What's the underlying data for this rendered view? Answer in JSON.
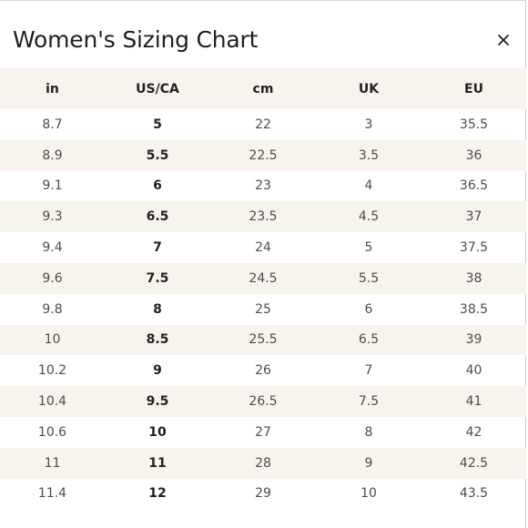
{
  "dialog": {
    "title": "Women's Sizing Chart",
    "close_icon": "close-icon"
  },
  "table": {
    "columns": [
      "in",
      "US/CA",
      "cm",
      "UK",
      "EU"
    ],
    "rows": [
      [
        "8.7",
        "5",
        "22",
        "3",
        "35.5"
      ],
      [
        "8.9",
        "5.5",
        "22.5",
        "3.5",
        "36"
      ],
      [
        "9.1",
        "6",
        "23",
        "4",
        "36.5"
      ],
      [
        "9.3",
        "6.5",
        "23.5",
        "4.5",
        "37"
      ],
      [
        "9.4",
        "7",
        "24",
        "5",
        "37.5"
      ],
      [
        "9.6",
        "7.5",
        "24.5",
        "5.5",
        "38"
      ],
      [
        "9.8",
        "8",
        "25",
        "6",
        "38.5"
      ],
      [
        "10",
        "8.5",
        "25.5",
        "6.5",
        "39"
      ],
      [
        "10.2",
        "9",
        "26",
        "7",
        "40"
      ],
      [
        "10.4",
        "9.5",
        "26.5",
        "7.5",
        "41"
      ],
      [
        "10.6",
        "10",
        "27",
        "8",
        "42"
      ],
      [
        "11",
        "11",
        "28",
        "9",
        "42.5"
      ],
      [
        "11.4",
        "12",
        "29",
        "10",
        "43.5"
      ]
    ]
  },
  "colors": {
    "stripe": "#f7f4ee",
    "text": "#4d4d4d",
    "heading": "#1f1f1f"
  }
}
